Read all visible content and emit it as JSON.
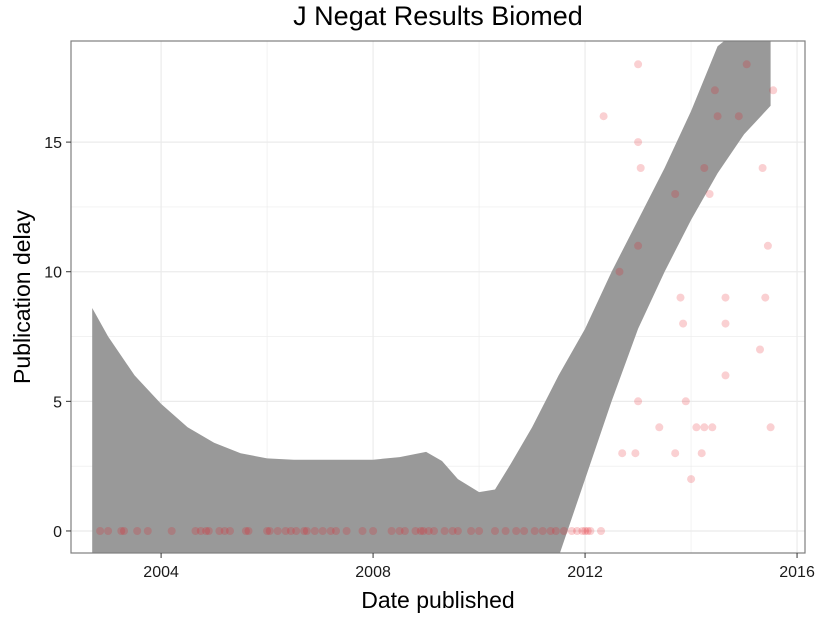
{
  "chart_data": {
    "type": "scatter",
    "title": "J Negat Results Biomed",
    "xlabel": "Date published",
    "ylabel": "Publication delay",
    "x_ticks": [
      "2004",
      "2008",
      "2012",
      "2016"
    ],
    "y_ticks": [
      "0",
      "5",
      "10",
      "15"
    ],
    "xlim": [
      2002.3,
      2016.15
    ],
    "ylim": [
      -0.85,
      18.9
    ],
    "grid": true,
    "colors": {
      "points": "#e8141c",
      "band": "#999999",
      "grid": "#ebebeb",
      "border": "#7f7f7f"
    },
    "series": [
      {
        "points": [
          {
            "x": 2002.85,
            "y": 0
          },
          {
            "x": 2003.0,
            "y": 0
          },
          {
            "x": 2003.25,
            "y": 0
          },
          {
            "x": 2003.3,
            "y": 0
          },
          {
            "x": 2003.55,
            "y": 0
          },
          {
            "x": 2003.75,
            "y": 0
          },
          {
            "x": 2004.2,
            "y": 0
          },
          {
            "x": 2004.65,
            "y": 0
          },
          {
            "x": 2004.75,
            "y": 0
          },
          {
            "x": 2004.85,
            "y": 0
          },
          {
            "x": 2004.9,
            "y": 0
          },
          {
            "x": 2005.1,
            "y": 0
          },
          {
            "x": 2005.2,
            "y": 0
          },
          {
            "x": 2005.3,
            "y": 0
          },
          {
            "x": 2005.6,
            "y": 0
          },
          {
            "x": 2005.65,
            "y": 0
          },
          {
            "x": 2006.0,
            "y": 0
          },
          {
            "x": 2006.05,
            "y": 0
          },
          {
            "x": 2006.2,
            "y": 0
          },
          {
            "x": 2006.35,
            "y": 0
          },
          {
            "x": 2006.45,
            "y": 0
          },
          {
            "x": 2006.55,
            "y": 0
          },
          {
            "x": 2006.7,
            "y": 0
          },
          {
            "x": 2006.75,
            "y": 0
          },
          {
            "x": 2006.9,
            "y": 0
          },
          {
            "x": 2007.05,
            "y": 0
          },
          {
            "x": 2007.2,
            "y": 0
          },
          {
            "x": 2007.3,
            "y": 0
          },
          {
            "x": 2007.5,
            "y": 0
          },
          {
            "x": 2007.8,
            "y": 0
          },
          {
            "x": 2008.0,
            "y": 0
          },
          {
            "x": 2008.35,
            "y": 0
          },
          {
            "x": 2008.5,
            "y": 0
          },
          {
            "x": 2008.6,
            "y": 0
          },
          {
            "x": 2008.8,
            "y": 0
          },
          {
            "x": 2008.9,
            "y": 0
          },
          {
            "x": 2008.95,
            "y": 0
          },
          {
            "x": 2009.05,
            "y": 0
          },
          {
            "x": 2009.15,
            "y": 0
          },
          {
            "x": 2009.35,
            "y": 0
          },
          {
            "x": 2009.5,
            "y": 0
          },
          {
            "x": 2009.6,
            "y": 0
          },
          {
            "x": 2009.85,
            "y": 0
          },
          {
            "x": 2010.0,
            "y": 0
          },
          {
            "x": 2010.3,
            "y": 0
          },
          {
            "x": 2010.5,
            "y": 0
          },
          {
            "x": 2010.7,
            "y": 0
          },
          {
            "x": 2010.85,
            "y": 0
          },
          {
            "x": 2011.05,
            "y": 0
          },
          {
            "x": 2011.2,
            "y": 0
          },
          {
            "x": 2011.35,
            "y": 0
          },
          {
            "x": 2011.45,
            "y": 0
          },
          {
            "x": 2011.6,
            "y": 0
          },
          {
            "x": 2011.75,
            "y": 0
          },
          {
            "x": 2011.85,
            "y": 0
          },
          {
            "x": 2011.95,
            "y": 0
          },
          {
            "x": 2012.0,
            "y": 0
          },
          {
            "x": 2012.05,
            "y": 0
          },
          {
            "x": 2012.1,
            "y": 0
          },
          {
            "x": 2012.3,
            "y": 0
          },
          {
            "x": 2012.35,
            "y": 16
          },
          {
            "x": 2012.65,
            "y": 10
          },
          {
            "x": 2012.7,
            "y": 3
          },
          {
            "x": 2012.95,
            "y": 3
          },
          {
            "x": 2013.0,
            "y": 18
          },
          {
            "x": 2013.0,
            "y": 15
          },
          {
            "x": 2013.05,
            "y": 14
          },
          {
            "x": 2013.0,
            "y": 11
          },
          {
            "x": 2013.0,
            "y": 5
          },
          {
            "x": 2013.4,
            "y": 4
          },
          {
            "x": 2013.7,
            "y": 13
          },
          {
            "x": 2013.7,
            "y": 3
          },
          {
            "x": 2013.8,
            "y": 9
          },
          {
            "x": 2013.85,
            "y": 8
          },
          {
            "x": 2013.9,
            "y": 5
          },
          {
            "x": 2014.0,
            "y": 2
          },
          {
            "x": 2014.1,
            "y": 4
          },
          {
            "x": 2014.2,
            "y": 3
          },
          {
            "x": 2014.25,
            "y": 4
          },
          {
            "x": 2014.25,
            "y": 14
          },
          {
            "x": 2014.35,
            "y": 13
          },
          {
            "x": 2014.4,
            "y": 4
          },
          {
            "x": 2014.45,
            "y": 17
          },
          {
            "x": 2014.5,
            "y": 16
          },
          {
            "x": 2014.65,
            "y": 9
          },
          {
            "x": 2014.65,
            "y": 8
          },
          {
            "x": 2014.65,
            "y": 6
          },
          {
            "x": 2014.9,
            "y": 16
          },
          {
            "x": 2015.05,
            "y": 18
          },
          {
            "x": 2015.3,
            "y": 7
          },
          {
            "x": 2015.35,
            "y": 14
          },
          {
            "x": 2015.4,
            "y": 9
          },
          {
            "x": 2015.45,
            "y": 11
          },
          {
            "x": 2015.5,
            "y": 4
          },
          {
            "x": 2015.55,
            "y": 17
          }
        ]
      }
    ],
    "smooth_band": {
      "x": [
        2002.7,
        2003.0,
        2003.5,
        2004.0,
        2004.5,
        2005.0,
        2005.5,
        2006.0,
        2006.5,
        2007.0,
        2007.5,
        2008.0,
        2008.5,
        2009.0,
        2009.3,
        2009.6,
        2010.0,
        2010.3,
        2010.6,
        2011.0,
        2011.5,
        2012.0,
        2012.5,
        2013.0,
        2013.5,
        2014.0,
        2014.5,
        2015.0,
        2015.5
      ],
      "upper": [
        8.6,
        7.5,
        6.0,
        4.9,
        4.0,
        3.4,
        3.0,
        2.8,
        2.75,
        2.75,
        2.75,
        2.75,
        2.85,
        3.05,
        2.7,
        2.0,
        1.5,
        1.6,
        2.6,
        4.0,
        6.0,
        7.8,
        10.0,
        12.0,
        14.0,
        16.2,
        18.7,
        19.5,
        19.6
      ],
      "lower": [
        -4.0,
        -4.0,
        -4.0,
        -4.0,
        -4.0,
        -4.0,
        -4.0,
        -4.0,
        -4.0,
        -4.0,
        -4.0,
        -4.0,
        -4.0,
        -4.0,
        -4.0,
        -4.0,
        -4.0,
        -4.0,
        -4.0,
        -4.0,
        -1.0,
        2.0,
        5.0,
        7.8,
        10.0,
        12.0,
        13.8,
        15.3,
        16.4
      ]
    }
  }
}
